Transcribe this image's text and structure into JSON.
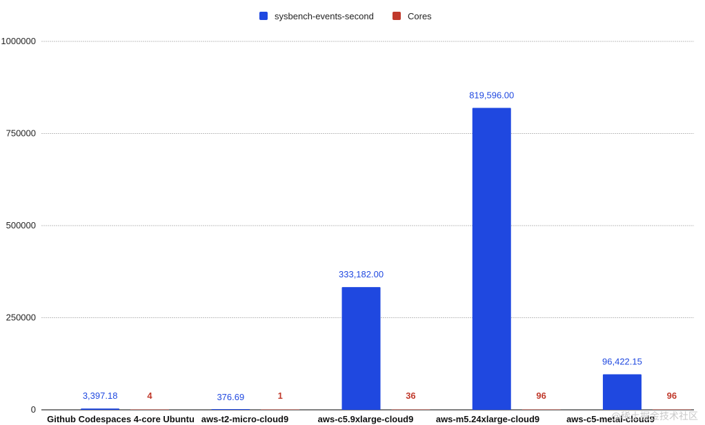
{
  "chart_data": {
    "type": "bar",
    "categories": [
      "Github Codespaces 4-core Ubuntu",
      "aws-t2-micro-cloud9",
      "aws-c5.9xlarge-cloud9",
      "aws-m5.24xlarge-cloud9",
      "aws-c5-metal-cloud9"
    ],
    "series": [
      {
        "name": "sysbench-events-second",
        "color": "#1f48e0",
        "values": [
          3397.18,
          376.69,
          333182.0,
          819596.0,
          96422.15
        ],
        "labels": [
          "3,397.18",
          "376.69",
          "333,182.00",
          "819,596.00",
          "96,422.15"
        ]
      },
      {
        "name": "Cores",
        "color": "#c0392b",
        "values": [
          4,
          1,
          36,
          96,
          96
        ],
        "labels": [
          "4",
          "1",
          "36",
          "96",
          "96"
        ]
      }
    ],
    "ylim": [
      0,
      1000000
    ],
    "yticks": [
      0,
      250000,
      500000,
      750000,
      1000000
    ],
    "ytick_labels": [
      "0",
      "250000",
      "500000",
      "750000",
      "1000000"
    ],
    "grid": true,
    "legend_position": "top-center"
  },
  "watermark": "@稀土掘金技术社区"
}
